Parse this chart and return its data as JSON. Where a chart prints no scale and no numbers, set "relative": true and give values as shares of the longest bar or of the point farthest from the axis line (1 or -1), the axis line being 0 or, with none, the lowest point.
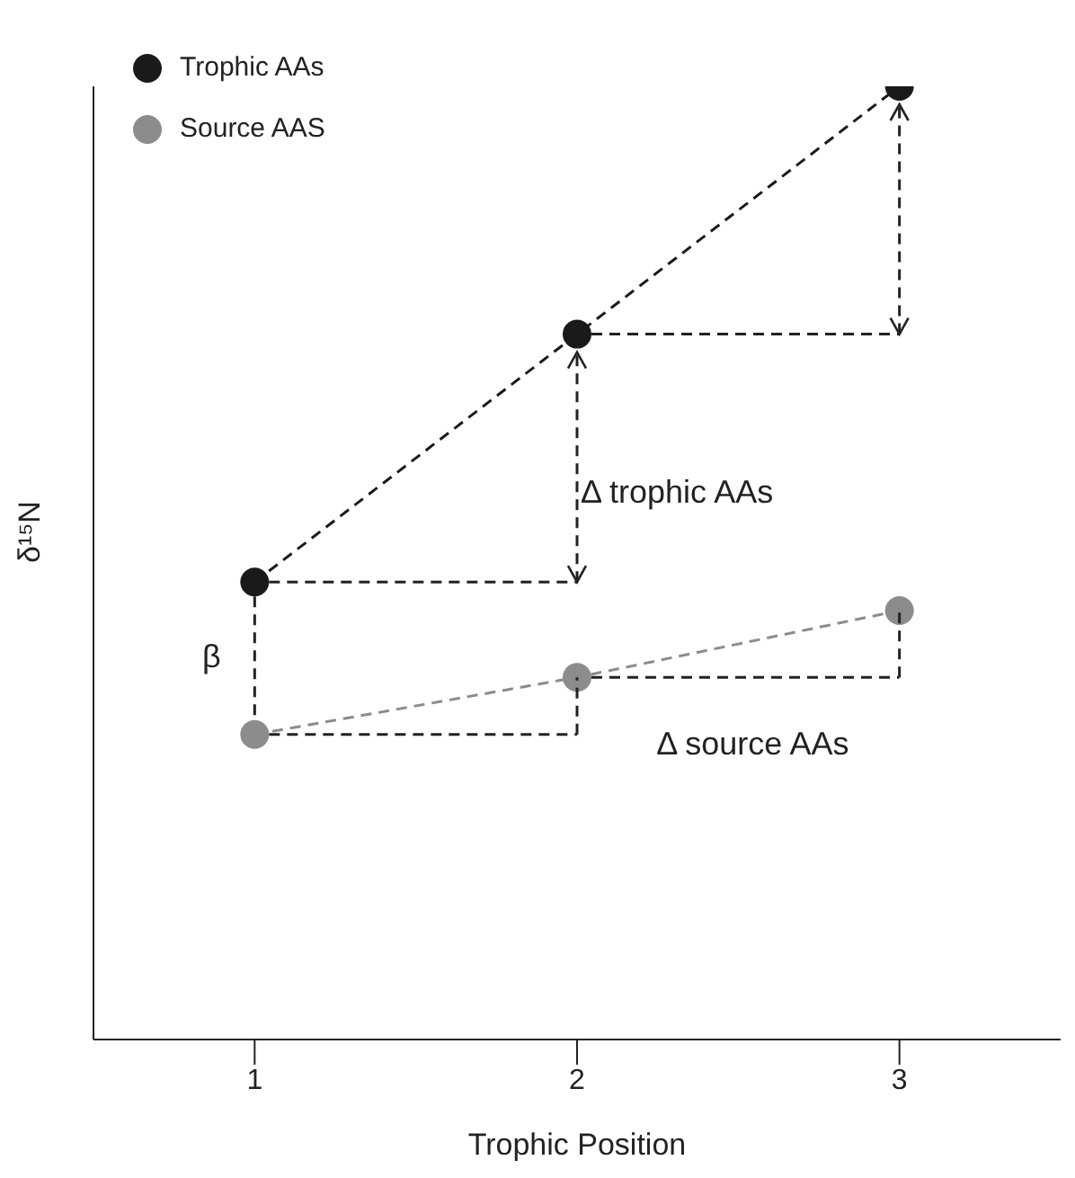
{
  "chart_data": {
    "type": "line",
    "relative": true,
    "xlabel": "Trophic Position",
    "ylabel": "δ¹⁵N",
    "x": [
      1,
      2,
      3
    ],
    "xlim": [
      0.5,
      3.5
    ],
    "xticks": [
      1,
      2,
      3
    ],
    "series": [
      {
        "name": "Trophic AAs",
        "color": "#1a1a1a",
        "values": [
          0.48,
          0.74,
          1
        ]
      },
      {
        "name": "Source AAS",
        "color": "#8c8c8c",
        "values": [
          0.32,
          0.38,
          0.45
        ]
      }
    ],
    "annotations": [
      "β",
      "Δ trophic AAs",
      "Δ source AAs"
    ],
    "marker": "circle",
    "line_style": "dashed",
    "legend": "top left",
    "grid": false
  }
}
